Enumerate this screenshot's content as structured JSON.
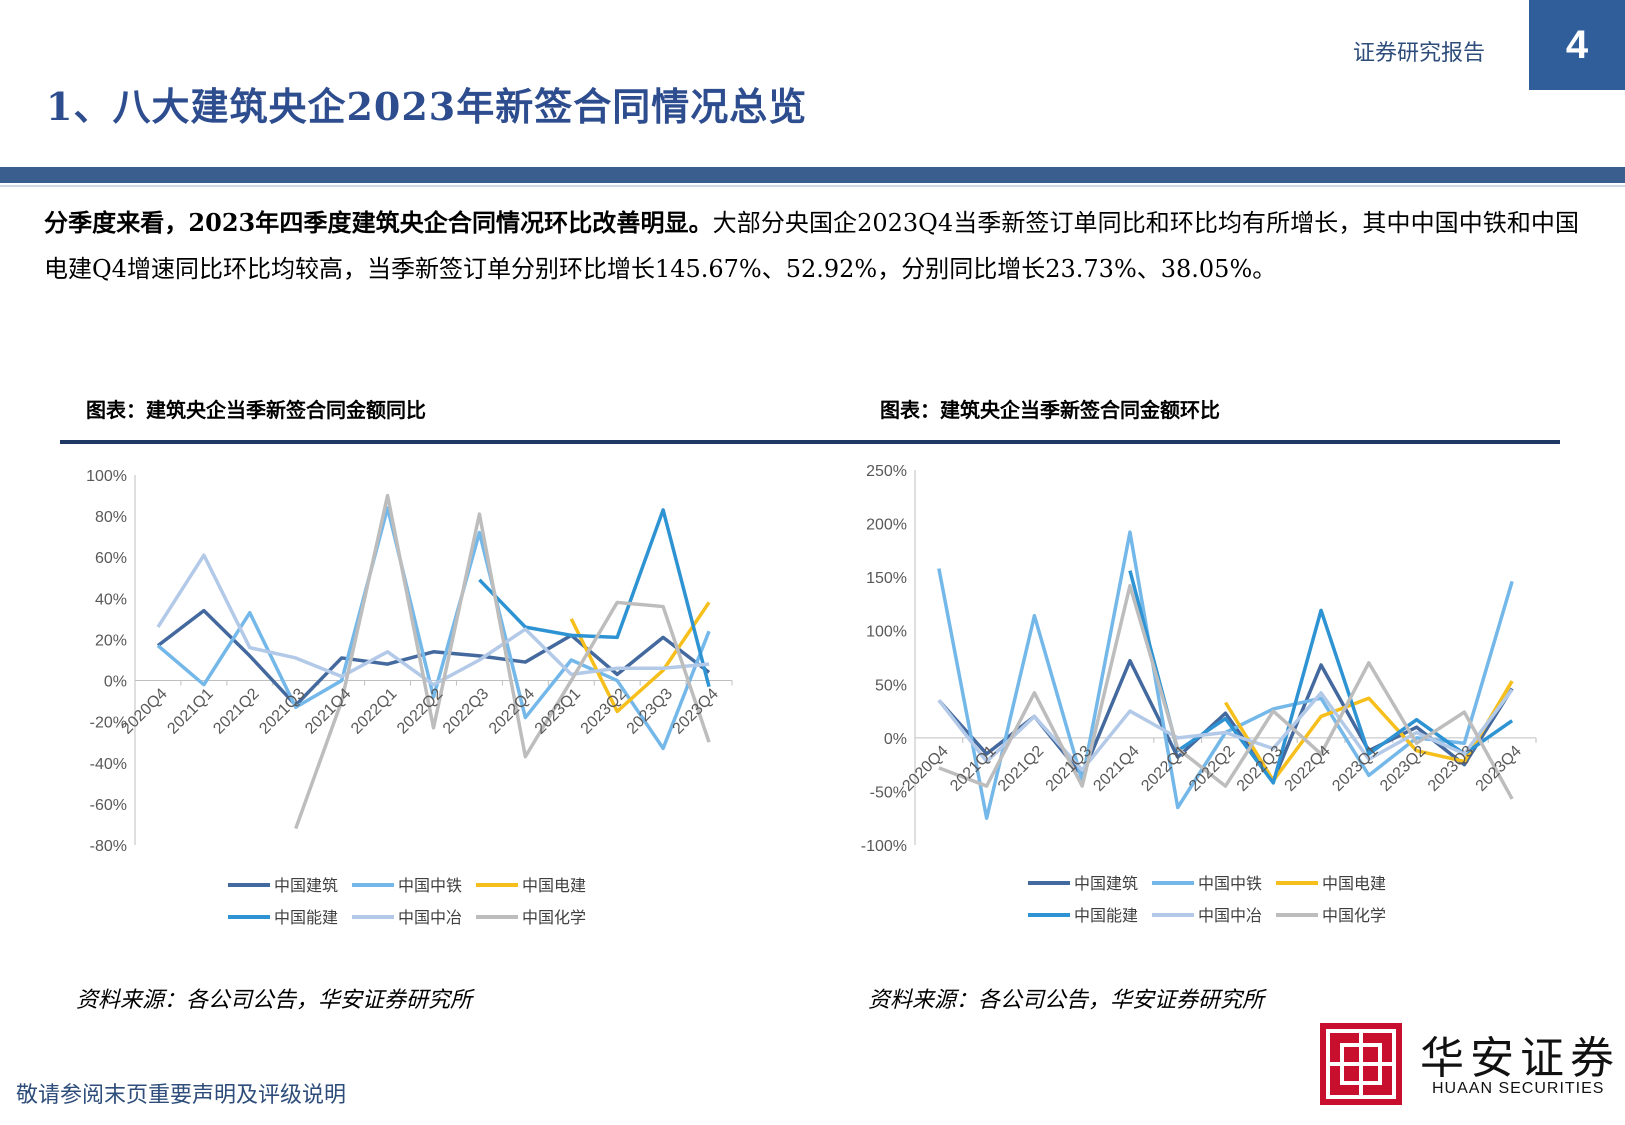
{
  "header": {
    "label": "证券研究报告",
    "page_number": "4"
  },
  "title": "1、八大建筑央企2023年新签合同情况总览",
  "summary": {
    "bold": "分季度来看，2023年四季度建筑央企合同情况环比改善明显。",
    "text": "大部分央国企2023Q4当季新签订单同比和环比均有所增长，其中中国中铁和中国电建Q4增速同比环比均较高，当季新签订单分别环比增长145.67%、52.92%，分别同比增长23.73%、38.05%。"
  },
  "charts": [
    {
      "heading": "图表：建筑央企当季新签合同金额同比",
      "source": "资料来源：各公司公告，华安证券研究所"
    },
    {
      "heading": "图表：建筑央企当季新签合同金额环比",
      "source": "资料来源：各公司公告，华安证券研究所"
    }
  ],
  "footer": {
    "disclaimer": "敬请参阅末页重要声明及评级说明"
  },
  "logo": {
    "cn": "华安证券",
    "en": "HUAAN SECURITIES"
  },
  "colors": {
    "中国建筑": "#44699e",
    "中国中铁": "#74b8ea",
    "中国电建": "#f6bf1c",
    "中国能建": "#2e93d3",
    "中国中冶": "#b3c9e8",
    "中国化学": "#bdbdbd"
  },
  "chart_data": [
    {
      "type": "line",
      "title": "图表：建筑央企当季新签合同金额同比",
      "categories": [
        "2020Q4",
        "2021Q1",
        "2021Q2",
        "2021Q3",
        "2021Q4",
        "2022Q1",
        "2022Q2",
        "2022Q3",
        "2022Q4",
        "2023Q1",
        "2023Q2",
        "2023Q3",
        "2023Q4"
      ],
      "ylim": [
        -80,
        100
      ],
      "yticks": [
        "100%",
        "80%",
        "60%",
        "40%",
        "20%",
        "0%",
        "-20%",
        "-40%",
        "-60%",
        "-80%"
      ],
      "legend": "bottom",
      "series": [
        {
          "name": "中国建筑",
          "values": [
            17,
            34,
            12,
            -12,
            11,
            8,
            14,
            12,
            9,
            22,
            3,
            21,
            4
          ]
        },
        {
          "name": "中国中铁",
          "values": [
            17,
            -2,
            33,
            -13,
            0,
            84,
            -8,
            72,
            -18,
            10,
            0,
            -33,
            24
          ]
        },
        {
          "name": "中国电建",
          "values": [
            null,
            null,
            null,
            null,
            null,
            null,
            null,
            null,
            null,
            30,
            -15,
            5,
            38
          ]
        },
        {
          "name": "中国能建",
          "values": [
            null,
            null,
            null,
            null,
            null,
            null,
            null,
            49,
            26,
            22,
            21,
            83,
            -3
          ]
        },
        {
          "name": "中国中冶",
          "values": [
            26,
            61,
            16,
            11,
            2,
            14,
            -2,
            10,
            25,
            3,
            6,
            6,
            8
          ]
        },
        {
          "name": "中国化学",
          "values": [
            null,
            null,
            null,
            -72,
            -10,
            90,
            -23,
            81,
            -37,
            0,
            38,
            36,
            -30
          ]
        }
      ]
    },
    {
      "type": "line",
      "title": "图表：建筑央企当季新签合同金额环比",
      "categories": [
        "2020Q4",
        "2021Q1",
        "2021Q2",
        "2021Q3",
        "2021Q4",
        "2022Q1",
        "2022Q2",
        "2022Q3",
        "2022Q4",
        "2023Q1",
        "2023Q2",
        "2023Q3",
        "2023Q4"
      ],
      "ylim": [
        -100,
        250
      ],
      "yticks": [
        "250%",
        "200%",
        "150%",
        "100%",
        "50%",
        "0%",
        "-50%",
        "-100%"
      ],
      "legend": "bottom",
      "series": [
        {
          "name": "中国建筑",
          "values": [
            35,
            -15,
            20,
            -35,
            72,
            -18,
            23,
            -40,
            68,
            -12,
            10,
            -25,
            46
          ]
        },
        {
          "name": "中国中铁",
          "values": [
            158,
            -75,
            114,
            -40,
            192,
            -65,
            5,
            27,
            37,
            -35,
            0,
            -5,
            146
          ]
        },
        {
          "name": "中国电建",
          "values": [
            null,
            null,
            null,
            null,
            null,
            null,
            33,
            -40,
            20,
            37,
            -12,
            -22,
            53
          ]
        },
        {
          "name": "中国能建",
          "values": [
            null,
            null,
            null,
            null,
            156,
            -12,
            18,
            -42,
            119,
            -15,
            17,
            -15,
            16
          ]
        },
        {
          "name": "中国中冶",
          "values": [
            35,
            -22,
            20,
            -30,
            25,
            0,
            5,
            -10,
            42,
            -20,
            5,
            -15,
            45
          ]
        },
        {
          "name": "中国化学",
          "values": [
            -28,
            -45,
            42,
            -45,
            142,
            -10,
            -45,
            25,
            -15,
            70,
            -5,
            24,
            -57
          ]
        }
      ]
    }
  ]
}
